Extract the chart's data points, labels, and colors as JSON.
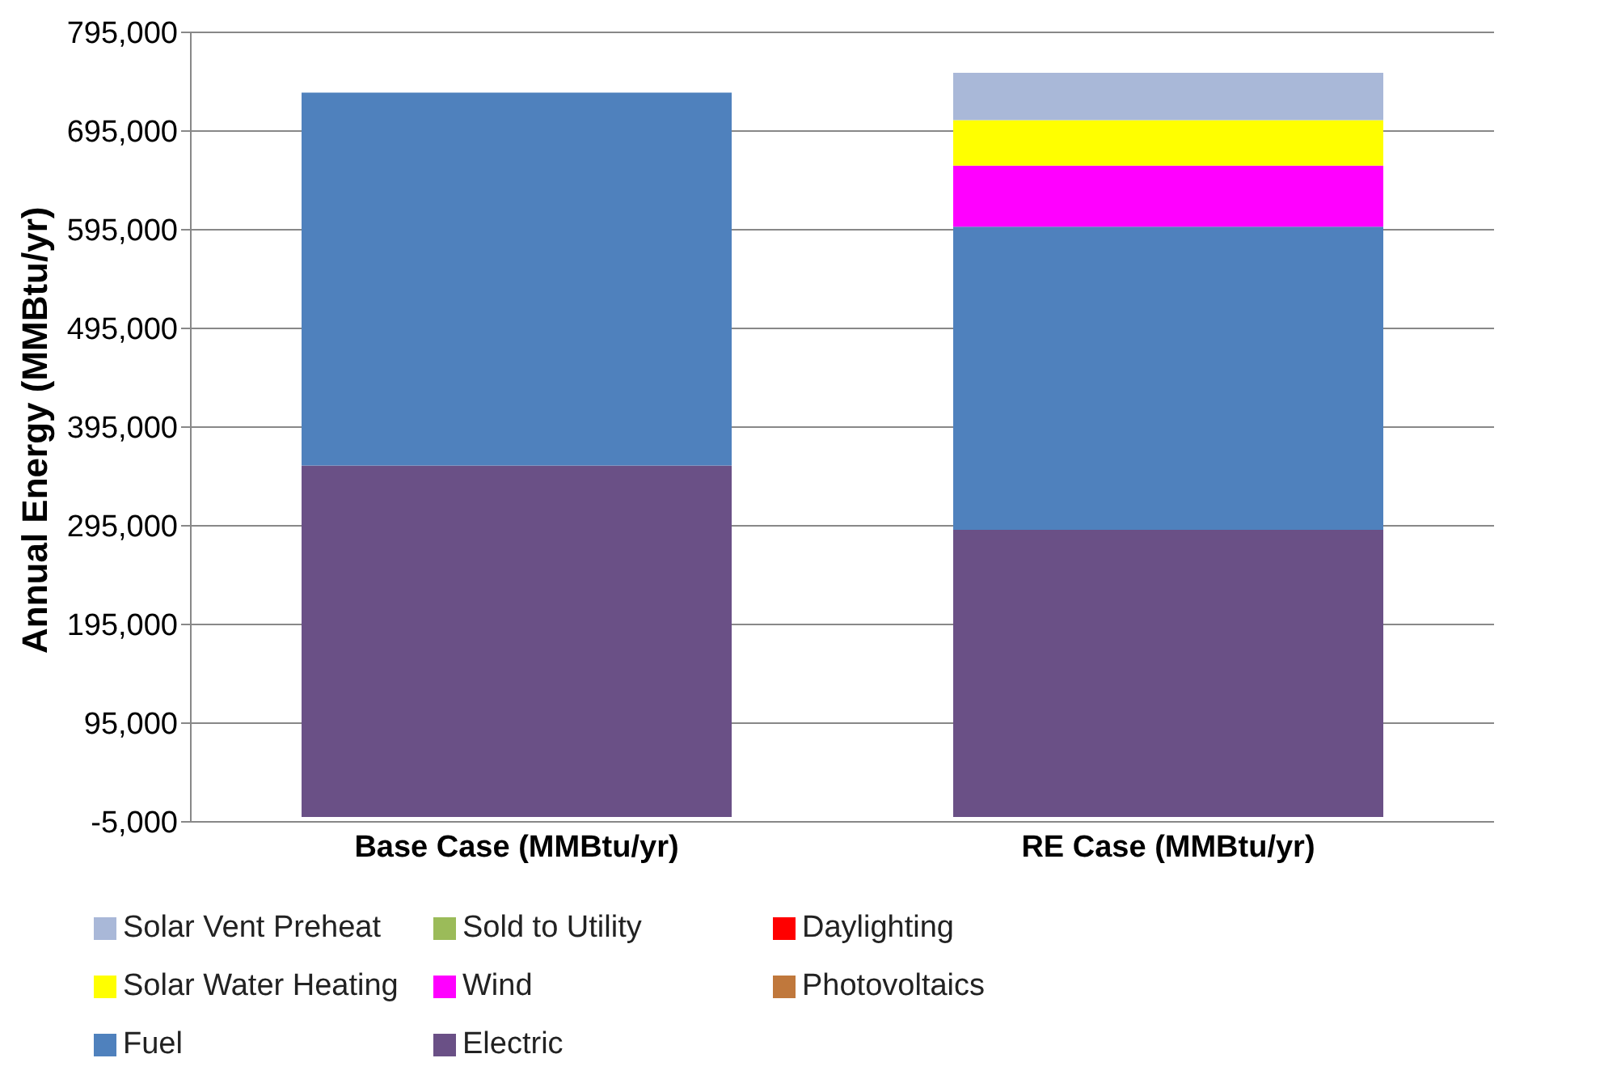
{
  "chart_data": {
    "type": "bar",
    "stacked": true,
    "ylabel": "Annual Energy (MMBtu/yr)",
    "categories": [
      "Base Case  (MMBtu/yr)",
      "RE Case  (MMBtu/yr)"
    ],
    "series": [
      {
        "name": "Electric",
        "color": "#6a5086",
        "values": [
          356000,
          291000
        ]
      },
      {
        "name": "Fuel",
        "color": "#4f81bd",
        "values": [
          378000,
          307000
        ]
      },
      {
        "name": "Photovoltaics",
        "color": "#c0783c",
        "values": [
          0,
          0
        ]
      },
      {
        "name": "Wind",
        "color": "#ff00ff",
        "values": [
          0,
          62000
        ]
      },
      {
        "name": "Solar Water Heating",
        "color": "#ffff00",
        "values": [
          0,
          46000
        ]
      },
      {
        "name": "Daylighting",
        "color": "#ff0000",
        "values": [
          0,
          0
        ]
      },
      {
        "name": "Sold to Utility",
        "color": "#9bbb59",
        "values": [
          0,
          0
        ]
      },
      {
        "name": "Solar Vent Preheat",
        "color": "#a9b8d8",
        "values": [
          0,
          48000
        ]
      }
    ],
    "ylim": [
      -5000,
      795000
    ],
    "yticks": [
      {
        "value": -5000,
        "label": "-5,000"
      },
      {
        "value": 95000,
        "label": "95,000"
      },
      {
        "value": 195000,
        "label": "195,000"
      },
      {
        "value": 295000,
        "label": "295,000"
      },
      {
        "value": 395000,
        "label": "395,000"
      },
      {
        "value": 495000,
        "label": "495,000"
      },
      {
        "value": 595000,
        "label": "595,000"
      },
      {
        "value": 695000,
        "label": "695,000"
      },
      {
        "value": 795000,
        "label": "795,000"
      }
    ],
    "grid": "y",
    "legend": "bottom"
  }
}
